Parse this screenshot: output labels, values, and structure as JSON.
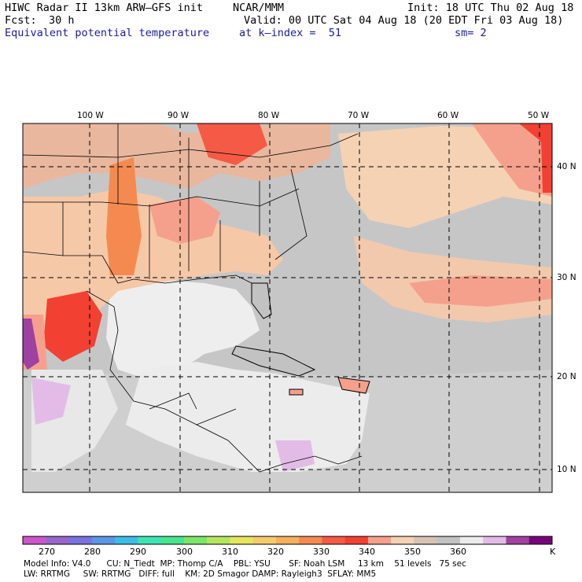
{
  "header": {
    "title": "HIWC Radar II 13km ARW–GFS init",
    "center": "NCAR/MMM",
    "init": "Init: 18 UTC Thu 02 Aug 18",
    "fcst_label": "Fcst:",
    "fcst_value": "30 h",
    "valid": "Valid: 00 UTC Sat 04 Aug 18 (20 EDT Fri 03 Aug 18)",
    "field": "Equivalent potential temperature",
    "level": "at k–index =  51",
    "smoothing": "sm= 2"
  },
  "map": {
    "lon_labels": [
      "100 W",
      "90 W",
      "80 W",
      "70 W",
      "60 W",
      "50 W"
    ],
    "lat_labels": [
      "40 N",
      "30 N",
      "20 N",
      "10 N"
    ]
  },
  "colorbar": {
    "colors": [
      "#cc55cc",
      "#9966cc",
      "#7a72e0",
      "#5c96e6",
      "#3cbde6",
      "#3ce6b4",
      "#46e68c",
      "#7be668",
      "#b4e65c",
      "#e6e65c",
      "#f5cc6c",
      "#f5b05c",
      "#f58a50",
      "#f55a46",
      "#f24032",
      "#f5a08c",
      "#f5d2b4",
      "#d6c3b4",
      "#c2c2c2",
      "#ececec",
      "#e2bce6",
      "#a040a0",
      "#7a007a"
    ],
    "labels": [
      "270",
      "280",
      "290",
      "300",
      "310",
      "320",
      "330",
      "340",
      "350",
      "360"
    ],
    "unit": "K"
  },
  "footer": {
    "line1": "Model Info: V4.0      CU: N_Tiedt  MP: Thomp C/A    PBL: YSU       SF: Noah LSM     13 km    51 levels   75 sec",
    "line2": "LW: RRTMG     SW: RRTMG   DIFF: full    KM: 2D Smagor DAMP: Rayleigh3  SFLAY: MM5"
  }
}
